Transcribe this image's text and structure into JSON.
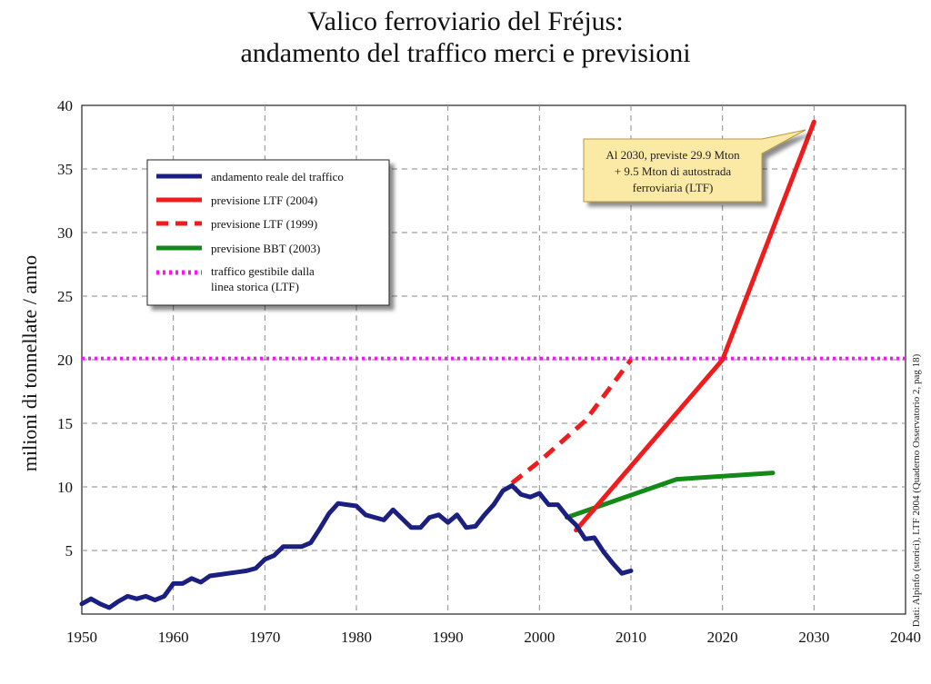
{
  "chart_data": {
    "type": "line",
    "title_line1": "Valico ferroviario del Fréjus:",
    "title_line2": "andamento del traffico merci e previsioni",
    "ylabel": "milioni di tonnellate / anno",
    "xlabel": "",
    "xlim": [
      1950,
      2040
    ],
    "ylim": [
      0,
      40
    ],
    "x_ticks": [
      1950,
      1960,
      1970,
      1980,
      1990,
      2000,
      2010,
      2020,
      2030,
      2040
    ],
    "y_ticks": [
      5,
      10,
      15,
      20,
      25,
      30,
      35,
      40
    ],
    "grid": true,
    "legend_position": "top-left",
    "source_note": "Dati: Alpinfo (storici), LTF 2004 (Quaderno Osservatorio 2, pag 18)",
    "annotation": {
      "lines": [
        "Al 2030, previste 29.9 Mton",
        "+ 9.5 Mton di autostrada",
        "ferroviaria (LTF)"
      ],
      "points_to": [
        2029.5,
        38.7
      ]
    },
    "series": [
      {
        "name": "andamento reale del traffico",
        "color": "#1a1f80",
        "style": "solid",
        "x": [
          1950,
          1951,
          1952,
          1953,
          1954,
          1955,
          1956,
          1957,
          1958,
          1959,
          1960,
          1961,
          1962,
          1963,
          1964,
          1965,
          1966,
          1967,
          1968,
          1969,
          1970,
          1971,
          1972,
          1973,
          1974,
          1975,
          1976,
          1977,
          1978,
          1979,
          1980,
          1981,
          1982,
          1983,
          1984,
          1985,
          1986,
          1987,
          1988,
          1989,
          1990,
          1991,
          1992,
          1993,
          1994,
          1995,
          1996,
          1997,
          1998,
          1999,
          2000,
          2001,
          2002,
          2003,
          2004,
          2005,
          2006,
          2007,
          2008,
          2009,
          2010
        ],
        "values": [
          0.8,
          1.2,
          0.8,
          0.5,
          1.0,
          1.4,
          1.2,
          1.4,
          1.1,
          1.4,
          2.4,
          2.4,
          2.8,
          2.5,
          3.0,
          3.1,
          3.2,
          3.3,
          3.4,
          3.6,
          4.3,
          4.6,
          5.3,
          5.3,
          5.3,
          5.6,
          6.7,
          7.9,
          8.7,
          8.6,
          8.5,
          7.8,
          7.6,
          7.4,
          8.2,
          7.5,
          6.8,
          6.8,
          7.6,
          7.8,
          7.2,
          7.8,
          6.8,
          6.9,
          7.8,
          8.6,
          9.7,
          10.1,
          9.4,
          9.2,
          9.5,
          8.6,
          8.6,
          7.7,
          7.0,
          5.9,
          6.0,
          4.9,
          4.0,
          3.2,
          3.4
        ]
      },
      {
        "name": "previsione LTF (2004)",
        "color": "#ee1c1c",
        "style": "solid",
        "x": [
          2004,
          2020,
          2030
        ],
        "values": [
          6.6,
          20.0,
          38.7
        ]
      },
      {
        "name": "previsione LTF (1999)",
        "color": "#ee1c1c",
        "style": "dashed",
        "x": [
          1997,
          2000,
          2005,
          2010
        ],
        "values": [
          10.3,
          12.0,
          15.2,
          20.0
        ]
      },
      {
        "name": "previsione BBT (2003)",
        "color": "#138a17",
        "style": "solid",
        "x": [
          2003,
          2015,
          2025.5
        ],
        "values": [
          7.6,
          10.6,
          11.1
        ]
      },
      {
        "name": "traffico gestibile dalla linea storica (LTF)",
        "color": "#ff10ff",
        "style": "dotted",
        "x": [
          1950,
          2040
        ],
        "values": [
          20.1,
          20.1
        ]
      }
    ]
  },
  "legend": {
    "items": [
      {
        "line1": "andamento reale del traffico",
        "line2": ""
      },
      {
        "line1": "previsione LTF (2004)",
        "line2": ""
      },
      {
        "line1": "previsione LTF (1999)",
        "line2": ""
      },
      {
        "line1": "previsione BBT (2003)",
        "line2": ""
      },
      {
        "line1": "traffico gestibile dalla",
        "line2": "linea storica (LTF)"
      }
    ]
  }
}
